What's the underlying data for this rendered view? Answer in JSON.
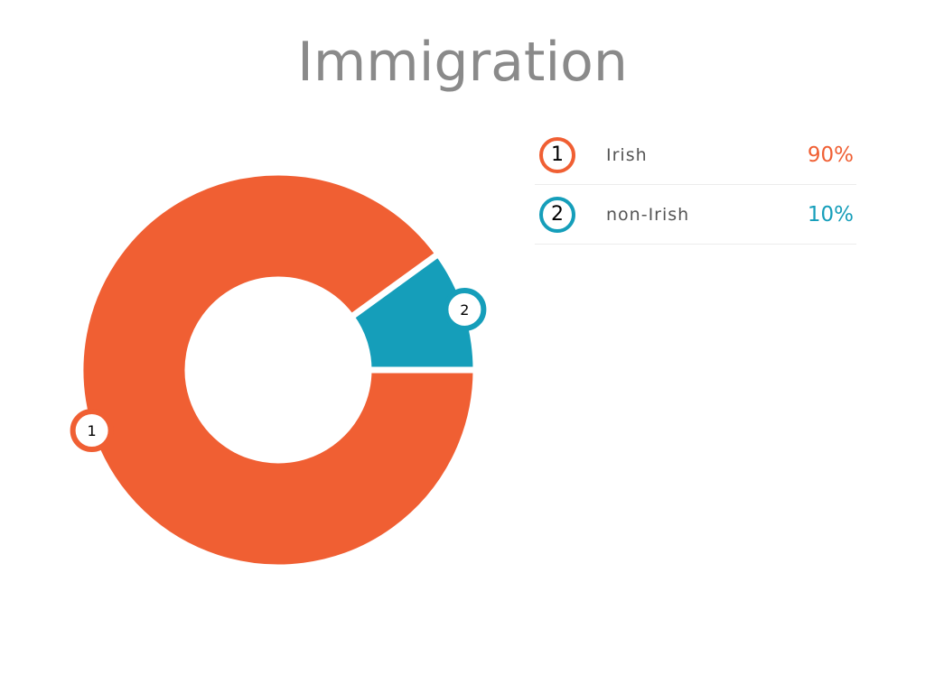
{
  "chart_data": {
    "type": "pie",
    "variant": "donut",
    "title": "Immigration",
    "slices": [
      {
        "index": "1",
        "label": "Irish",
        "value": 90,
        "display": "90%",
        "color": "#F05F33"
      },
      {
        "index": "2",
        "label": "non-Irish",
        "value": 10,
        "display": "10%",
        "color": "#159EBA"
      }
    ],
    "legend_position": "right"
  }
}
